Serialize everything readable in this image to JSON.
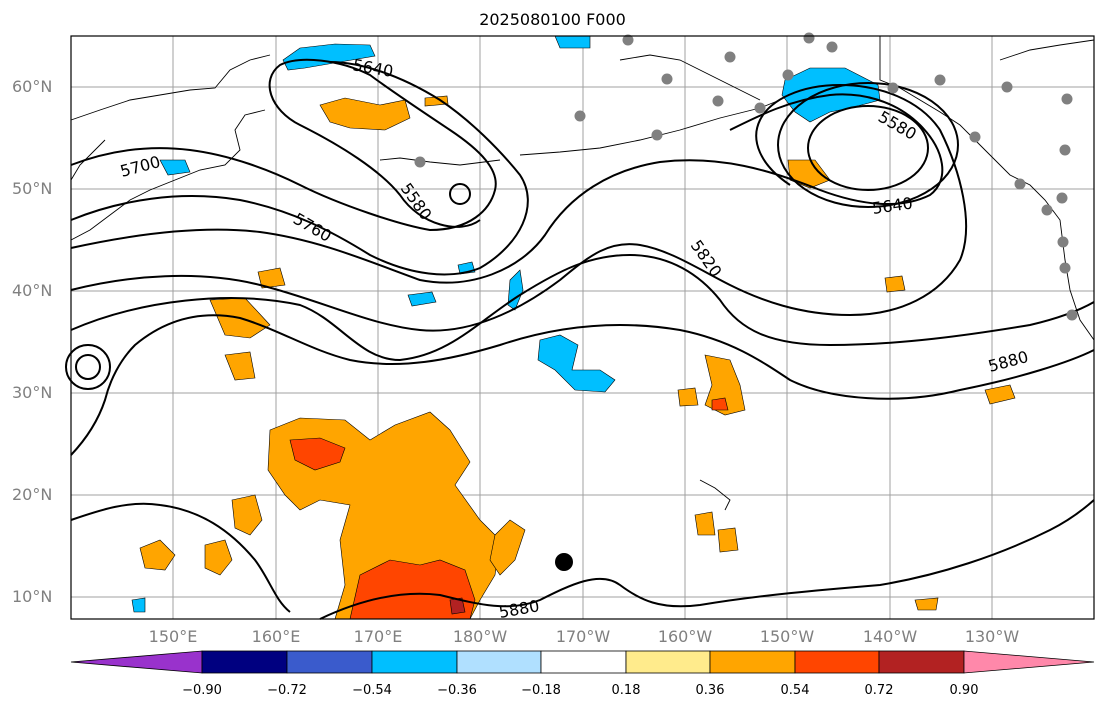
{
  "title": "2025080100 F000",
  "latitude_labels": [
    "60°N",
    "50°N",
    "40°N",
    "30°N",
    "20°N",
    "10°N"
  ],
  "longitude_labels": [
    "150°E",
    "160°E",
    "170°E",
    "180°W",
    "170°W",
    "160°W",
    "150°W",
    "140°W",
    "130°W"
  ],
  "height_contours": {
    "units_shown": "geopotential height labels",
    "labels": [
      "5580",
      "5640",
      "5700",
      "5760",
      "5820",
      "5880",
      "5580",
      "5640",
      "5880"
    ]
  },
  "colorbar": {
    "tick_labels": [
      "−0.90",
      "−0.72",
      "−0.54",
      "−0.36",
      "−0.18",
      "0.18",
      "0.36",
      "0.54",
      "0.72",
      "0.90"
    ],
    "colors": [
      "#9932cc",
      "#000080",
      "#3a5bcc",
      "#00bfff",
      "#b0e0ff",
      "#ffffff",
      "#ffeb8c",
      "#ffa500",
      "#ff4500",
      "#b22222",
      "#ff88aa"
    ]
  },
  "markers": {
    "station_color": "#808080",
    "highlight_color": "#000000"
  }
}
